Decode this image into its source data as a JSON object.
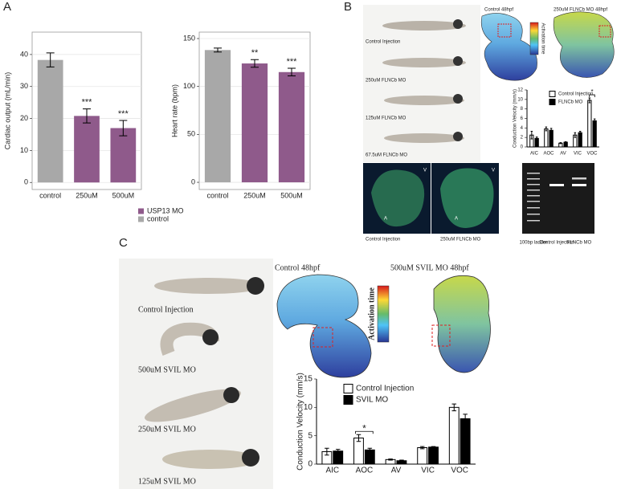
{
  "figure": {
    "panel_labels": [
      "A",
      "B",
      "C"
    ],
    "panel_b": {
      "fish_labels": [
        "Control Injection",
        "250uM FLNCb MO",
        "125uM FLNCb MO",
        "67.5uM FLNCb MO"
      ],
      "map_titles": [
        "Control 48hpf",
        "250uM FLNCb MO 48hpf"
      ],
      "colorbar_label": "Activation time",
      "confocal_marks": [
        "V",
        "A",
        "V",
        "A"
      ],
      "confocal_labels": [
        "Control Injection",
        "250uM FLNCb MO"
      ],
      "gel_labels": [
        "100bp ladder",
        "Control Injection",
        "FLNCb MO"
      ]
    },
    "panel_c": {
      "fish_labels": [
        "Control Injection",
        "500uM SVIL MO",
        "250uM SVIL MO",
        "125uM SVIL MO"
      ],
      "map_titles": [
        "Control 48hpf",
        "500uM SVIL MO 48hpf"
      ],
      "colorbar_label": "Activation time"
    }
  },
  "chart_data": [
    {
      "type": "bar",
      "ylabel": "Cardiac output (mL/min)",
      "categories": [
        "control",
        "250uM",
        "500uM"
      ],
      "series": [
        {
          "name": "USP13 MO",
          "color": "#8f5a8b",
          "values": [
            null,
            20.8,
            17.0
          ],
          "errors": [
            null,
            2.2,
            2.4
          ]
        },
        {
          "name": "control",
          "color": "#a8a8a8",
          "values": [
            38.3,
            null,
            null
          ],
          "errors": [
            2.2,
            null,
            null
          ]
        }
      ],
      "annotations": [
        {
          "category": "250uM",
          "text": "***"
        },
        {
          "category": "500uM",
          "text": "***"
        }
      ],
      "ylim": [
        -2.2,
        47
      ],
      "yticks": [
        0,
        10,
        20,
        30,
        40
      ],
      "grid": true,
      "legend": "below"
    },
    {
      "type": "bar",
      "ylabel": "Heart rate (bpm)",
      "categories": [
        "control",
        "250uM",
        "500uM"
      ],
      "series": [
        {
          "name": "USP13 MO",
          "color": "#8f5a8b",
          "values": [
            null,
            124,
            115
          ],
          "errors": [
            null,
            4,
            4
          ]
        },
        {
          "name": "control",
          "color": "#a8a8a8",
          "values": [
            138,
            null,
            null
          ],
          "errors": [
            2,
            null,
            null
          ]
        }
      ],
      "annotations": [
        {
          "category": "250uM",
          "text": "**"
        },
        {
          "category": "500uM",
          "text": "***"
        }
      ],
      "ylim": [
        -7.5,
        156.7
      ],
      "yticks": [
        0,
        50,
        100,
        150
      ],
      "grid": true
    },
    {
      "type": "bar",
      "ylabel": "Conduction Velocity (mm/s)",
      "categories": [
        "AIC",
        "AOC",
        "AV",
        "VIC",
        "VOC"
      ],
      "series": [
        {
          "name": "Control Injection",
          "color": "#ffffff",
          "values": [
            2.5,
            3.8,
            0.8,
            2.5,
            9.8
          ],
          "errors": [
            0.8,
            0.4,
            0.1,
            0.5,
            0.5
          ]
        },
        {
          "name": "FLNCb MO",
          "color": "#000000",
          "values": [
            1.8,
            3.5,
            1.0,
            3.0,
            5.5
          ],
          "errors": [
            0.3,
            0.4,
            0.1,
            0.3,
            0.4
          ]
        }
      ],
      "annotations": [
        {
          "category": "VOC",
          "text": "*"
        }
      ],
      "ylim": [
        0,
        12
      ],
      "yticks": [
        0,
        2,
        4,
        6,
        8,
        10,
        12
      ],
      "grid": false,
      "legend": "upper-center"
    },
    {
      "type": "bar",
      "ylabel": "Conduction Velocity (mm/s)",
      "categories": [
        "AIC",
        "AOC",
        "AV",
        "VIC",
        "VOC"
      ],
      "series": [
        {
          "name": "Control Injection",
          "color": "#ffffff",
          "values": [
            2.2,
            4.6,
            0.8,
            2.9,
            10.0
          ],
          "errors": [
            0.6,
            0.6,
            0.1,
            0.2,
            0.6
          ]
        },
        {
          "name": "SVIL MO",
          "color": "#000000",
          "values": [
            2.3,
            2.5,
            0.6,
            3.0,
            8.0
          ],
          "errors": [
            0.3,
            0.3,
            0.1,
            0.1,
            0.8
          ]
        }
      ],
      "annotations": [
        {
          "category": "AOC",
          "text": "*"
        }
      ],
      "ylim": [
        0,
        15
      ],
      "yticks": [
        0,
        5,
        10,
        15
      ],
      "grid": false,
      "legend": "upper-left"
    }
  ]
}
